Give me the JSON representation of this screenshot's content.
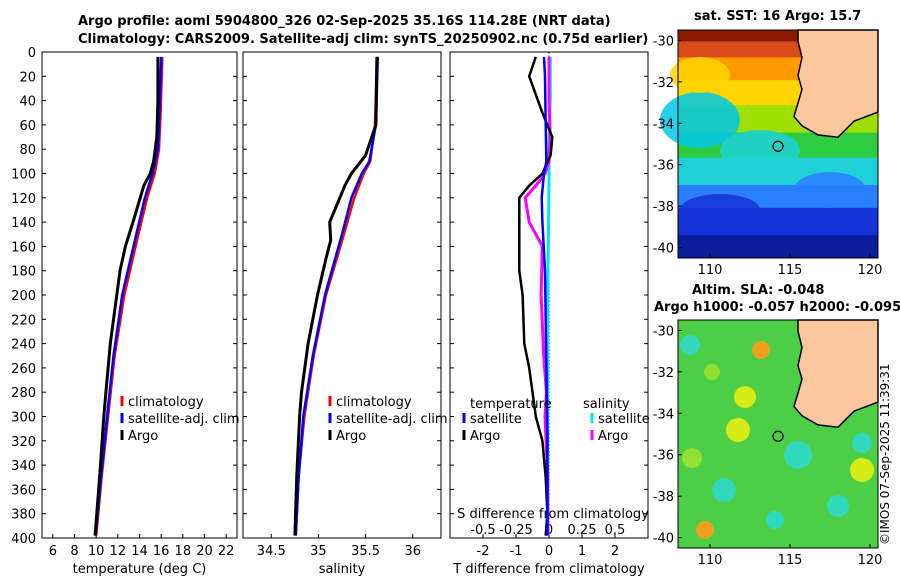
{
  "header": {
    "line1": "Argo profile: aoml 5904800_326 02-Sep-2025 35.16S 114.28E (NRT data)",
    "line2": "Climatology: CARS2009. Satellite-adj clim: synTS_20250902.nc (0.75d earlier)"
  },
  "map_sst": {
    "title": "sat. SST: 16 Argo: 15.7",
    "xticks": [
      "110",
      "115",
      "120"
    ],
    "yticks": [
      "-30",
      "-32",
      "-34",
      "-36",
      "-38",
      "-40"
    ]
  },
  "map_sla": {
    "title1": "Altim. SLA: -0.048",
    "title2": "Argo h1000: -0.057 h2000: -0.095",
    "xticks": [
      "110",
      "115",
      "120"
    ],
    "yticks": [
      "-30",
      "-32",
      "-34",
      "-36",
      "-38",
      "-40"
    ]
  },
  "credit": "©IMOS 07-Sep-2025 11:39:31",
  "colors": {
    "climatology": "#ff0000",
    "satellite": "#0000ff",
    "argo": "#000000",
    "sal_sat": "#00e5ff",
    "sal_argo": "#ff00ff"
  },
  "chart_data": [
    {
      "type": "line",
      "name": "temperature",
      "xlabel": "temperature (deg C)",
      "xlim": [
        5,
        23
      ],
      "xticks": [
        6,
        8,
        10,
        12,
        14,
        16,
        18,
        20,
        22
      ],
      "ylim": [
        0,
        400
      ],
      "yticks": [
        0,
        20,
        40,
        60,
        80,
        100,
        120,
        140,
        160,
        180,
        200,
        220,
        240,
        260,
        280,
        300,
        320,
        340,
        360,
        380,
        400
      ],
      "legend": [
        "climatology",
        "satellite-adj. clim",
        "Argo"
      ],
      "series": [
        {
          "name": "climatology",
          "depth": [
            4,
            50,
            80,
            100,
            120,
            150,
            200,
            250,
            300,
            350,
            398
          ],
          "values": [
            16.1,
            15.95,
            15.8,
            15.4,
            14.7,
            13.9,
            12.6,
            11.7,
            11.1,
            10.5,
            10.0
          ]
        },
        {
          "name": "satellite-adj. clim",
          "depth": [
            4,
            50,
            80,
            100,
            120,
            150,
            200,
            250,
            300,
            350,
            398
          ],
          "values": [
            16.0,
            15.85,
            15.7,
            15.2,
            14.5,
            13.7,
            12.4,
            11.6,
            11.0,
            10.45,
            9.95
          ]
        },
        {
          "name": "Argo",
          "depth": [
            4,
            40,
            70,
            90,
            100,
            110,
            125,
            140,
            160,
            180,
            200,
            240,
            280,
            300,
            340,
            398
          ],
          "values": [
            15.7,
            15.7,
            15.6,
            15.3,
            15.0,
            14.4,
            13.9,
            13.4,
            12.7,
            12.2,
            11.9,
            11.3,
            10.9,
            10.7,
            10.4,
            9.9
          ]
        }
      ]
    },
    {
      "type": "line",
      "name": "salinity",
      "xlabel": "salinity",
      "xlim": [
        34.2,
        36.3
      ],
      "xticks": [
        "34.5",
        "35",
        "35.5",
        "36"
      ],
      "ylim": [
        0,
        400
      ],
      "legend": [
        "climatology",
        "satellite-adj. clim",
        "Argo"
      ],
      "series": [
        {
          "name": "climatology",
          "depth": [
            4,
            60,
            90,
            100,
            120,
            150,
            200,
            250,
            300,
            350,
            398
          ],
          "values": [
            35.62,
            35.6,
            35.55,
            35.48,
            35.38,
            35.27,
            35.08,
            34.95,
            34.85,
            34.79,
            34.76
          ]
        },
        {
          "name": "satellite-adj. clim",
          "depth": [
            4,
            60,
            90,
            100,
            120,
            150,
            200,
            250,
            300,
            350,
            398
          ],
          "values": [
            35.63,
            35.61,
            35.54,
            35.46,
            35.35,
            35.25,
            35.07,
            34.94,
            34.84,
            34.79,
            34.76
          ]
        },
        {
          "name": "Argo",
          "depth": [
            4,
            60,
            85,
            100,
            110,
            125,
            140,
            155,
            170,
            200,
            240,
            280,
            300,
            350,
            398
          ],
          "values": [
            35.62,
            35.61,
            35.5,
            35.35,
            35.28,
            35.2,
            35.12,
            35.13,
            35.08,
            34.99,
            34.89,
            34.82,
            34.8,
            34.77,
            34.75
          ]
        }
      ]
    },
    {
      "type": "line",
      "name": "difference",
      "xlabel": "T difference from climatology",
      "xlim": [
        -3,
        3
      ],
      "xticks": [
        "-2",
        "-1",
        "0",
        "1",
        "2"
      ],
      "top_label": "S difference from climatology",
      "top_ticks": [
        "-0.5",
        "-0.25",
        "0",
        "0.25",
        "0.5"
      ],
      "ylim": [
        0,
        400
      ],
      "legend_left_title": "temperature",
      "legend_right_title": "salinity",
      "legend_left": [
        "satellite",
        "Argo"
      ],
      "legend_right": [
        "satellite",
        "Argo"
      ],
      "series": [
        {
          "name": "T satellite",
          "depth": [
            4,
            20,
            60,
            90,
            100,
            120,
            140,
            180,
            260,
            320,
            398
          ],
          "values": [
            -0.15,
            -0.12,
            -0.1,
            -0.08,
            -0.15,
            -0.22,
            -0.2,
            -0.12,
            -0.08,
            -0.05,
            -0.05
          ]
        },
        {
          "name": "T Argo",
          "depth": [
            4,
            20,
            50,
            70,
            85,
            100,
            110,
            120,
            150,
            180,
            200,
            240,
            260,
            280,
            300,
            320,
            350,
            380,
            398
          ],
          "values": [
            -0.4,
            -0.6,
            -0.2,
            0.1,
            0.05,
            -0.2,
            -0.6,
            -0.9,
            -0.9,
            -0.9,
            -0.8,
            -0.75,
            -0.6,
            -0.5,
            -0.4,
            -0.2,
            -0.1,
            -0.05,
            -0.1
          ]
        },
        {
          "name": "S satellite",
          "depth": [
            4,
            40,
            80,
            110,
            200,
            300,
            398
          ],
          "values": [
            0.01,
            0.01,
            0.0,
            0.0,
            -0.01,
            -0.01,
            -0.01
          ]
        },
        {
          "name": "S Argo",
          "depth": [
            4,
            40,
            70,
            90,
            100,
            110,
            120,
            140,
            160,
            200,
            250,
            280,
            300,
            350,
            398
          ],
          "values": [
            0.0,
            0.0,
            0.01,
            0.0,
            -0.03,
            -0.1,
            -0.18,
            -0.15,
            -0.05,
            -0.06,
            -0.04,
            -0.02,
            -0.03,
            -0.01,
            -0.01
          ]
        }
      ]
    }
  ]
}
